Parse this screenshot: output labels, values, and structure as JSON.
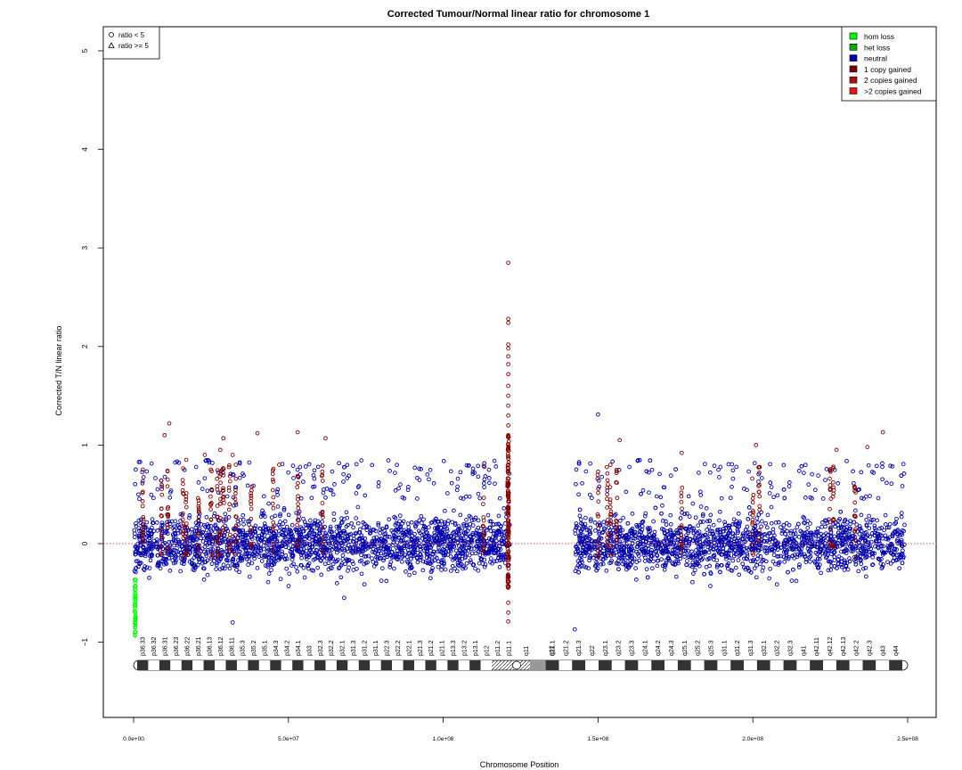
{
  "chart_data": {
    "type": "scatter",
    "title": "Corrected Tumour/Normal linear ratio for chromosome  1",
    "xlabel": "Chromosome Position",
    "ylabel": "Corrected T/N linear ratio",
    "xlim": [
      0,
      250000000
    ],
    "ylim": [
      -1.75,
      5.25
    ],
    "x_ticks": [
      0,
      50000000,
      100000000,
      150000000,
      200000000,
      250000000
    ],
    "x_tick_labels": [
      "0.0e+00",
      "5.0e+07",
      "1.0e+08",
      "1.5e+08",
      "2.0e+08",
      "2.5e+08"
    ],
    "y_ticks": [
      -1,
      0,
      1,
      2,
      3,
      4,
      5
    ],
    "y_tick_labels": [
      "−1",
      "0",
      "1",
      "2",
      "3",
      "4",
      "5"
    ],
    "reference_line_y": 0,
    "reference_line_color": "#cd5555",
    "colors": {
      "hom_loss": "#00ff00",
      "het_loss": "#00b000",
      "neutral": "#0000aa",
      "gain_1": "#800000",
      "gain_2": "#aa1111",
      "gain_more": "#ee1111"
    },
    "shape_legend": {
      "position": "top-left",
      "entries": [
        {
          "label": "ratio < 5",
          "shape": "circle"
        },
        {
          "label": "ratio >= 5",
          "shape": "triangle"
        }
      ]
    },
    "legend": {
      "position": "top-right",
      "entries": [
        {
          "label": "hom loss",
          "color": "#00ff00"
        },
        {
          "label": "het loss",
          "color": "#00b000"
        },
        {
          "label": "neutral",
          "color": "#0000aa"
        },
        {
          "label": "1 copy gained",
          "color": "#800000"
        },
        {
          "label": "2 copies gained",
          "color": "#aa1111"
        },
        {
          "label": ">2 copies gained",
          "color": "#ee1111"
        }
      ]
    },
    "series": [
      {
        "state": "neutral",
        "color": "#0000aa",
        "regions": [
          {
            "x_start": 150000,
            "x_end": 121500000,
            "y_mean": 0.0,
            "y_spread": 0.45
          },
          {
            "x_start": 142500000,
            "x_end": 249000000,
            "y_mean": 0.0,
            "y_spread": 0.45
          }
        ],
        "notable_points": [
          {
            "x": 32000000,
            "y": -0.8
          },
          {
            "x": 150000000,
            "y": 1.31
          },
          {
            "x": 142500000,
            "y": -0.87
          },
          {
            "x": 68000000,
            "y": -0.55
          }
        ]
      },
      {
        "state": "hom loss",
        "color": "#00ff00",
        "points": [
          {
            "x": 500000,
            "y": -0.4
          },
          {
            "x": 500000,
            "y": -0.5
          },
          {
            "x": 500000,
            "y": -0.6
          },
          {
            "x": 500000,
            "y": -0.65
          },
          {
            "x": 500000,
            "y": -0.7
          },
          {
            "x": 500000,
            "y": -0.75
          },
          {
            "x": 500000,
            "y": -0.8
          },
          {
            "x": 500000,
            "y": -0.85
          },
          {
            "x": 500000,
            "y": -0.9
          }
        ]
      },
      {
        "state": "gained",
        "color": "#800000",
        "points": [
          {
            "x": 121000000,
            "y": 2.85
          },
          {
            "x": 121000000,
            "y": 2.28
          },
          {
            "x": 121000000,
            "y": 2.24
          },
          {
            "x": 121000000,
            "y": 2.02
          },
          {
            "x": 121000000,
            "y": 1.98
          },
          {
            "x": 121000000,
            "y": 1.9
          },
          {
            "x": 121000000,
            "y": 1.82
          },
          {
            "x": 121000000,
            "y": 1.72
          },
          {
            "x": 121000000,
            "y": 1.6
          },
          {
            "x": 121000000,
            "y": 1.5
          },
          {
            "x": 121000000,
            "y": 1.4
          },
          {
            "x": 121000000,
            "y": 1.3
          },
          {
            "x": 121000000,
            "y": 1.2
          },
          {
            "x": 121000000,
            "y": 1.1
          },
          {
            "x": 121000000,
            "y": -0.6
          },
          {
            "x": 121000000,
            "y": -0.7
          },
          {
            "x": 121000000,
            "y": -0.79
          },
          {
            "x": 11500000,
            "y": 1.22
          },
          {
            "x": 10000000,
            "y": 1.1
          },
          {
            "x": 29000000,
            "y": 1.07
          },
          {
            "x": 40000000,
            "y": 1.12
          },
          {
            "x": 53000000,
            "y": 1.13
          },
          {
            "x": 62000000,
            "y": 1.07
          },
          {
            "x": 237000000,
            "y": 0.98
          },
          {
            "x": 242000000,
            "y": 1.13
          },
          {
            "x": 201000000,
            "y": 1.0
          },
          {
            "x": 3000000,
            "y": 0.75
          },
          {
            "x": 17000000,
            "y": 0.85
          },
          {
            "x": 23000000,
            "y": 0.9
          },
          {
            "x": 28000000,
            "y": 0.95
          },
          {
            "x": 32000000,
            "y": 0.9
          },
          {
            "x": 47000000,
            "y": 0.8
          },
          {
            "x": 157000000,
            "y": 1.05
          },
          {
            "x": 177000000,
            "y": 0.92
          },
          {
            "x": 227000000,
            "y": 0.95
          }
        ],
        "column_streaks_x": [
          3000000,
          9000000,
          11000000,
          16000000,
          17000000,
          21000000,
          25000000,
          27000000,
          28000000,
          29000000,
          31000000,
          33000000,
          38000000,
          45000000,
          53000000,
          61000000,
          113000000,
          121000000,
          150000000,
          153000000,
          154000000,
          156000000,
          177000000,
          200000000,
          202000000,
          225000000,
          226000000,
          233000000
        ]
      }
    ],
    "chromosome_bands": [
      "p36.33",
      "p36.32",
      "p36.31",
      "p36.23",
      "p36.22",
      "p36.21",
      "p36.13",
      "p36.12",
      "p36.11",
      "p35.3",
      "p35.2",
      "p35.1",
      "p34.3",
      "p34.2",
      "p34.1",
      "p33",
      "p32.3",
      "p32.2",
      "p32.1",
      "p31.3",
      "p31.2",
      "p31.1",
      "p22.3",
      "p22.2",
      "p22.1",
      "p21.3",
      "p21.2",
      "p21.1",
      "p13.3",
      "p13.2",
      "p13.1",
      "p12",
      "p11.2",
      "p11.1",
      "q11",
      "q12",
      "q21.1",
      "q21.2",
      "q21.3",
      "q22",
      "q23.1",
      "q23.2",
      "q23.3",
      "q24.1",
      "q24.2",
      "q24.3",
      "q25.1",
      "q25.2",
      "q25.3",
      "q31.1",
      "q31.2",
      "q31.3",
      "q32.1",
      "q32.2",
      "q32.3",
      "q41",
      "q42.11",
      "q42.12",
      "q42.13",
      "q42.2",
      "q42.3",
      "q43",
      "q44"
    ]
  }
}
